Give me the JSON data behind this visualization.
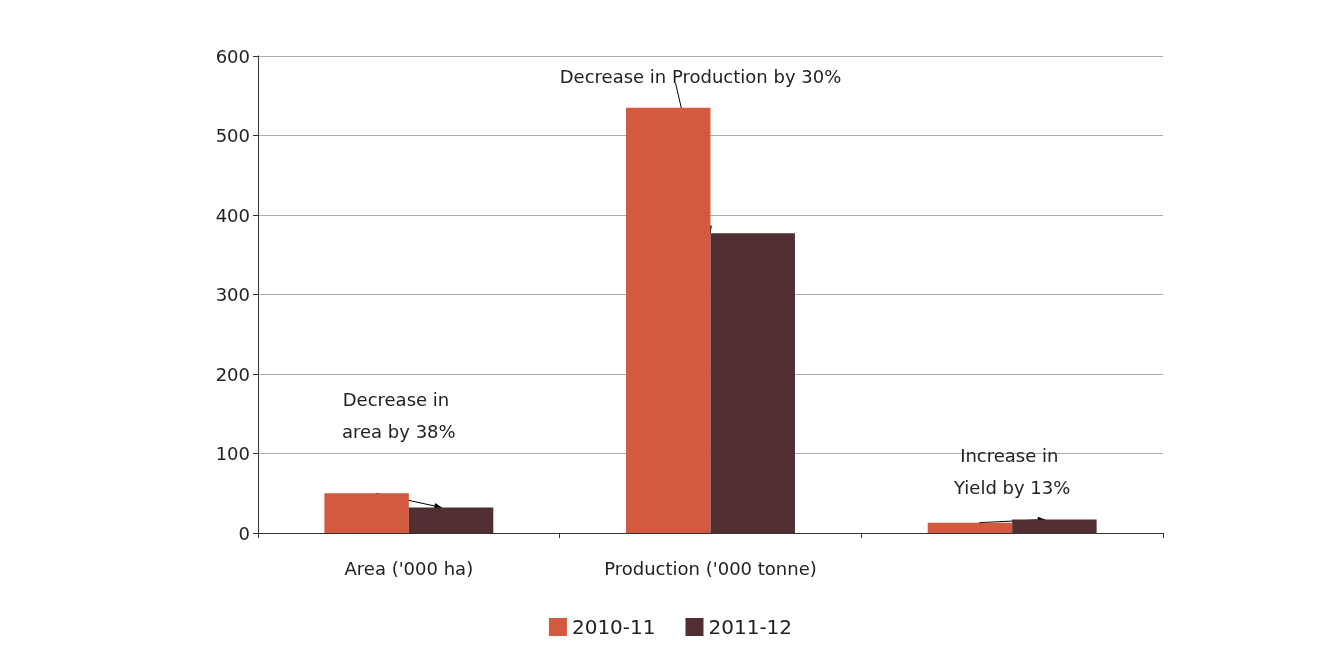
{
  "chart_data": {
    "type": "bar",
    "categories": [
      "Area ('000 ha)",
      "Production ('000 tonne)",
      null
    ],
    "series": [
      {
        "name": "2010-11",
        "color": "#d35a3e",
        "values": [
          50,
          535,
          13
        ]
      },
      {
        "name": "2011-12",
        "color": "#512e32",
        "values": [
          32,
          377,
          17
        ]
      }
    ],
    "ylim": [
      0,
      600
    ],
    "yticks": [
      0,
      100,
      200,
      300,
      400,
      500,
      600
    ],
    "grid": "y",
    "legend": "bottom",
    "annotations": [
      "Decrease in area by 38%",
      {
        "text": "Decrease in Production by 30%",
        "x": "Production ('000 tonne)",
        "y": 377
      },
      "Increase in Yield by 13%"
    ]
  }
}
